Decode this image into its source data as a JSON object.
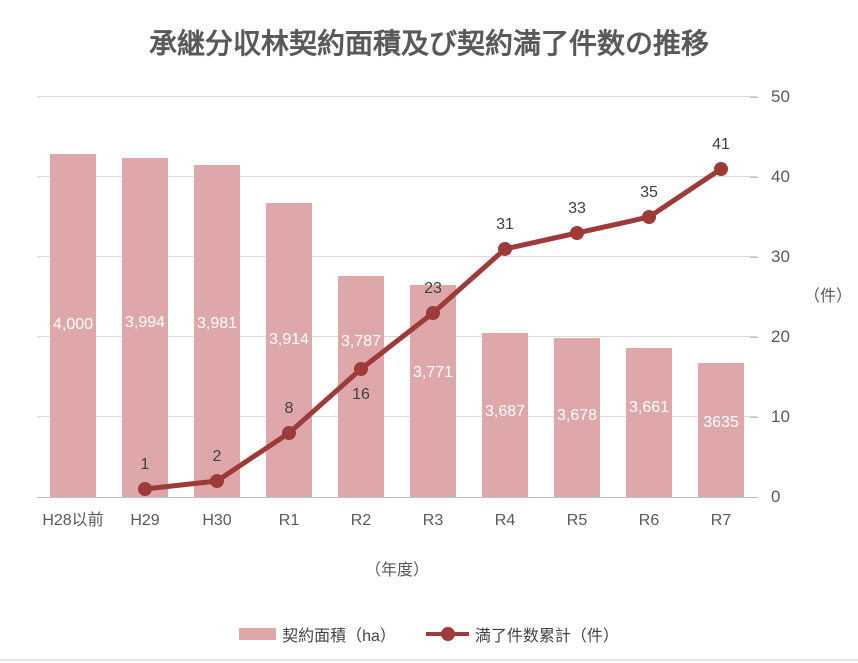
{
  "chart_data": {
    "type": "combo",
    "title": "承継分収林契約面積及び契約満了件数の推移",
    "categories": [
      "H28以前",
      "H29",
      "H30",
      "R1",
      "R2",
      "R3",
      "R4",
      "R5",
      "R6",
      "R7"
    ],
    "series": [
      {
        "name": "契約面積（ha）",
        "type": "bar",
        "color": "#DEA8AB",
        "label_color": "#FFFFFF",
        "values": [
          4000,
          3994,
          3981,
          3914,
          3787,
          3771,
          3687,
          3678,
          3661,
          3635
        ],
        "labels": [
          "4,000",
          "3,994",
          "3,981",
          "3,914",
          "3,787",
          "3,771",
          "3,687",
          "3,678",
          "3,661",
          "3635"
        ],
        "axis": {
          "side": "left",
          "min": 3400,
          "max": 3400,
          "visible": false,
          "note_max": 4100
        }
      },
      {
        "name": "満了件数累計（件）",
        "type": "line",
        "color": "#9E3A38",
        "label_color": "#404040",
        "values": [
          null,
          1,
          2,
          8,
          16,
          23,
          31,
          33,
          35,
          41
        ],
        "labels": [
          "",
          "1",
          "2",
          "8",
          "16",
          "23",
          "31",
          "33",
          "35",
          "41"
        ],
        "axis": {
          "side": "right",
          "min": 0,
          "max": 50,
          "step": 10
        }
      }
    ],
    "hidden_bar_axis": {
      "min": 3400,
      "max": 4100
    },
    "right_axis_ticks": [
      "0",
      "10",
      "20",
      "30",
      "40",
      "50"
    ],
    "right_axis_unit": "（件）",
    "xlabel": "（年度）",
    "grid": true,
    "legend_position": "bottom",
    "colors": {
      "bar": "#DEA8AB",
      "line": "#9E3A38",
      "gridline": "#DBDBDB",
      "axis_line": "#BFBFBF",
      "axis_text": "#595959",
      "data_label_dark": "#404040",
      "data_label_light": "#FFFFFF"
    }
  }
}
